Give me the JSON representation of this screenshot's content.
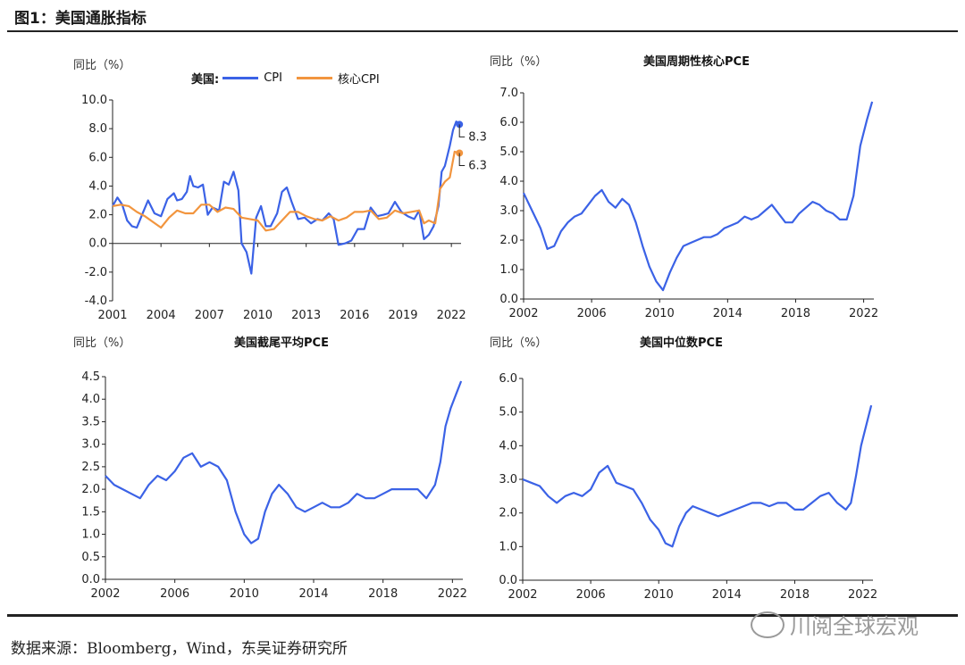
{
  "figure_title": "图1：美国通胀指标",
  "source": "数据来源：Bloomberg，Wind，东吴证券研究所",
  "watermark": "川阅全球宏观",
  "colors": {
    "blue": "#3b62e6",
    "orange": "#f2953e",
    "axis": "#222222"
  },
  "chart_data": [
    {
      "type": "line",
      "title": "",
      "ylabel": "同比（%）",
      "legend_prefix": "美国:",
      "ylim": [
        -4,
        10
      ],
      "yticks": [
        "-4.0",
        "-2.0",
        "0.0",
        "2.0",
        "4.0",
        "6.0",
        "8.0",
        "10.0"
      ],
      "xlim": [
        2001,
        2022.6
      ],
      "xticks": [
        "2001",
        "2004",
        "2007",
        "2010",
        "2013",
        "2016",
        "2019",
        "2022"
      ],
      "series": [
        {
          "name": "CPI",
          "color": "#3b62e6",
          "x": [
            2001.0,
            2001.3,
            2001.6,
            2001.9,
            2002.2,
            2002.5,
            2002.9,
            2003.2,
            2003.6,
            2004.0,
            2004.4,
            2004.8,
            2005.0,
            2005.3,
            2005.6,
            2005.8,
            2006.0,
            2006.3,
            2006.6,
            2006.9,
            2007.2,
            2007.6,
            2007.9,
            2008.2,
            2008.5,
            2008.8,
            2009.0,
            2009.3,
            2009.6,
            2009.9,
            2010.2,
            2010.5,
            2010.8,
            2011.2,
            2011.5,
            2011.8,
            2012.1,
            2012.5,
            2012.9,
            2013.3,
            2013.7,
            2014.0,
            2014.4,
            2014.7,
            2015.0,
            2015.4,
            2015.8,
            2016.2,
            2016.6,
            2017.0,
            2017.4,
            2017.8,
            2018.1,
            2018.5,
            2018.9,
            2019.3,
            2019.7,
            2020.0,
            2020.3,
            2020.6,
            2020.9,
            2021.2,
            2021.4,
            2021.6,
            2021.9,
            2022.1,
            2022.3,
            2022.5
          ],
          "values": [
            2.6,
            3.2,
            2.7,
            1.6,
            1.2,
            1.1,
            2.2,
            3.0,
            2.1,
            1.9,
            3.1,
            3.5,
            3.0,
            3.1,
            3.6,
            4.7,
            4.0,
            3.9,
            4.1,
            2.0,
            2.5,
            2.3,
            4.3,
            4.1,
            5.0,
            3.7,
            0.0,
            -0.6,
            -2.1,
            1.8,
            2.6,
            1.2,
            1.2,
            2.1,
            3.6,
            3.9,
            2.9,
            1.7,
            1.8,
            1.4,
            1.7,
            1.6,
            2.1,
            1.7,
            -0.1,
            0.0,
            0.2,
            1.0,
            1.0,
            2.5,
            1.9,
            2.0,
            2.1,
            2.9,
            2.2,
            1.9,
            1.7,
            2.3,
            0.3,
            0.6,
            1.2,
            2.6,
            5.0,
            5.4,
            6.8,
            7.9,
            8.5,
            8.3
          ],
          "end_label": "8.3"
        },
        {
          "name": "核心CPI",
          "color": "#f2953e",
          "x": [
            2001.0,
            2001.5,
            2002.0,
            2002.5,
            2003.0,
            2003.5,
            2004.0,
            2004.5,
            2005.0,
            2005.5,
            2006.0,
            2006.5,
            2007.0,
            2007.5,
            2008.0,
            2008.5,
            2009.0,
            2009.5,
            2010.0,
            2010.5,
            2011.0,
            2011.5,
            2012.0,
            2012.5,
            2013.0,
            2013.5,
            2014.0,
            2014.5,
            2015.0,
            2015.5,
            2016.0,
            2016.5,
            2017.0,
            2017.5,
            2018.0,
            2018.5,
            2019.0,
            2019.5,
            2020.0,
            2020.3,
            2020.6,
            2021.0,
            2021.3,
            2021.6,
            2021.9,
            2022.2,
            2022.5
          ],
          "values": [
            2.6,
            2.7,
            2.6,
            2.2,
            1.9,
            1.5,
            1.1,
            1.8,
            2.3,
            2.1,
            2.1,
            2.7,
            2.7,
            2.2,
            2.5,
            2.4,
            1.8,
            1.7,
            1.6,
            0.9,
            1.0,
            1.6,
            2.2,
            2.2,
            1.9,
            1.7,
            1.6,
            1.9,
            1.6,
            1.8,
            2.2,
            2.2,
            2.3,
            1.7,
            1.8,
            2.3,
            2.1,
            2.2,
            2.3,
            1.4,
            1.6,
            1.4,
            3.8,
            4.3,
            4.6,
            6.4,
            6.3
          ],
          "end_label": "6.3"
        }
      ]
    },
    {
      "type": "line",
      "title": "美国周期性核心PCE",
      "ylabel": "同比（%）",
      "ylim": [
        0,
        7
      ],
      "yticks": [
        "0.0",
        "1.0",
        "2.0",
        "3.0",
        "4.0",
        "5.0",
        "6.0",
        "7.0"
      ],
      "xlim": [
        2002,
        2022.6
      ],
      "xticks": [
        "2002",
        "2006",
        "2010",
        "2014",
        "2018",
        "2022"
      ],
      "series": [
        {
          "name": "周期性核心PCE",
          "color": "#3b62e6",
          "x": [
            2002.0,
            2002.5,
            2003.0,
            2003.4,
            2003.8,
            2004.2,
            2004.6,
            2005.0,
            2005.4,
            2005.8,
            2006.2,
            2006.6,
            2007.0,
            2007.4,
            2007.8,
            2008.2,
            2008.6,
            2009.0,
            2009.4,
            2009.8,
            2010.2,
            2010.6,
            2011.0,
            2011.4,
            2011.8,
            2012.2,
            2012.6,
            2013.0,
            2013.4,
            2013.8,
            2014.2,
            2014.6,
            2015.0,
            2015.4,
            2015.8,
            2016.2,
            2016.6,
            2017.0,
            2017.4,
            2017.8,
            2018.2,
            2018.6,
            2019.0,
            2019.4,
            2019.8,
            2020.2,
            2020.6,
            2021.0,
            2021.4,
            2021.8,
            2022.2,
            2022.5
          ],
          "values": [
            3.6,
            3.0,
            2.4,
            1.7,
            1.8,
            2.3,
            2.6,
            2.8,
            2.9,
            3.2,
            3.5,
            3.7,
            3.3,
            3.1,
            3.4,
            3.2,
            2.6,
            1.8,
            1.1,
            0.6,
            0.3,
            0.9,
            1.4,
            1.8,
            1.9,
            2.0,
            2.1,
            2.1,
            2.2,
            2.4,
            2.5,
            2.6,
            2.8,
            2.7,
            2.8,
            3.0,
            3.2,
            2.9,
            2.6,
            2.6,
            2.9,
            3.1,
            3.3,
            3.2,
            3.0,
            2.9,
            2.7,
            2.7,
            3.5,
            5.2,
            6.1,
            6.7
          ]
        }
      ]
    },
    {
      "type": "line",
      "title": "美国截尾平均PCE",
      "ylabel": "同比（%）",
      "ylim": [
        0,
        4.5
      ],
      "yticks": [
        "0.0",
        "0.5",
        "1.0",
        "1.5",
        "2.0",
        "2.5",
        "3.0",
        "3.5",
        "4.0",
        "4.5"
      ],
      "xlim": [
        2002,
        2022.6
      ],
      "xticks": [
        "2002",
        "2006",
        "2010",
        "2014",
        "2018",
        "2022"
      ],
      "series": [
        {
          "name": "截尾平均PCE",
          "color": "#3b62e6",
          "x": [
            2002.0,
            2002.5,
            2003.0,
            2003.5,
            2004.0,
            2004.5,
            2005.0,
            2005.5,
            2006.0,
            2006.5,
            2007.0,
            2007.5,
            2008.0,
            2008.5,
            2009.0,
            2009.5,
            2010.0,
            2010.4,
            2010.8,
            2011.2,
            2011.6,
            2012.0,
            2012.5,
            2013.0,
            2013.5,
            2014.0,
            2014.5,
            2015.0,
            2015.5,
            2016.0,
            2016.5,
            2017.0,
            2017.5,
            2018.0,
            2018.5,
            2019.0,
            2019.5,
            2020.0,
            2020.5,
            2021.0,
            2021.3,
            2021.6,
            2021.9,
            2022.2,
            2022.5
          ],
          "values": [
            2.3,
            2.1,
            2.0,
            1.9,
            1.8,
            2.1,
            2.3,
            2.2,
            2.4,
            2.7,
            2.8,
            2.5,
            2.6,
            2.5,
            2.2,
            1.5,
            1.0,
            0.8,
            0.9,
            1.5,
            1.9,
            2.1,
            1.9,
            1.6,
            1.5,
            1.6,
            1.7,
            1.6,
            1.6,
            1.7,
            1.9,
            1.8,
            1.8,
            1.9,
            2.0,
            2.0,
            2.0,
            2.0,
            1.8,
            2.1,
            2.6,
            3.4,
            3.8,
            4.1,
            4.4
          ]
        }
      ]
    },
    {
      "type": "line",
      "title": "美国中位数PCE",
      "ylabel": "同比（%）",
      "ylim": [
        0,
        6
      ],
      "yticks": [
        "0.0",
        "1.0",
        "2.0",
        "3.0",
        "4.0",
        "5.0",
        "6.0"
      ],
      "xlim": [
        2002,
        2022.6
      ],
      "xticks": [
        "2002",
        "2006",
        "2010",
        "2014",
        "2018",
        "2022"
      ],
      "series": [
        {
          "name": "中位数PCE",
          "color": "#3b62e6",
          "x": [
            2002.0,
            2002.5,
            2003.0,
            2003.5,
            2004.0,
            2004.5,
            2005.0,
            2005.5,
            2006.0,
            2006.5,
            2007.0,
            2007.5,
            2008.0,
            2008.5,
            2009.0,
            2009.5,
            2010.0,
            2010.4,
            2010.8,
            2011.2,
            2011.6,
            2012.0,
            2012.5,
            2013.0,
            2013.5,
            2014.0,
            2014.5,
            2015.0,
            2015.5,
            2016.0,
            2016.5,
            2017.0,
            2017.5,
            2018.0,
            2018.5,
            2019.0,
            2019.5,
            2020.0,
            2020.5,
            2021.0,
            2021.3,
            2021.6,
            2021.9,
            2022.2,
            2022.5
          ],
          "values": [
            3.0,
            2.9,
            2.8,
            2.5,
            2.3,
            2.5,
            2.6,
            2.5,
            2.7,
            3.2,
            3.4,
            2.9,
            2.8,
            2.7,
            2.3,
            1.8,
            1.5,
            1.1,
            1.0,
            1.6,
            2.0,
            2.2,
            2.1,
            2.0,
            1.9,
            2.0,
            2.1,
            2.2,
            2.3,
            2.3,
            2.2,
            2.3,
            2.3,
            2.1,
            2.1,
            2.3,
            2.5,
            2.6,
            2.3,
            2.1,
            2.3,
            3.1,
            4.0,
            4.6,
            5.2
          ]
        }
      ]
    }
  ]
}
